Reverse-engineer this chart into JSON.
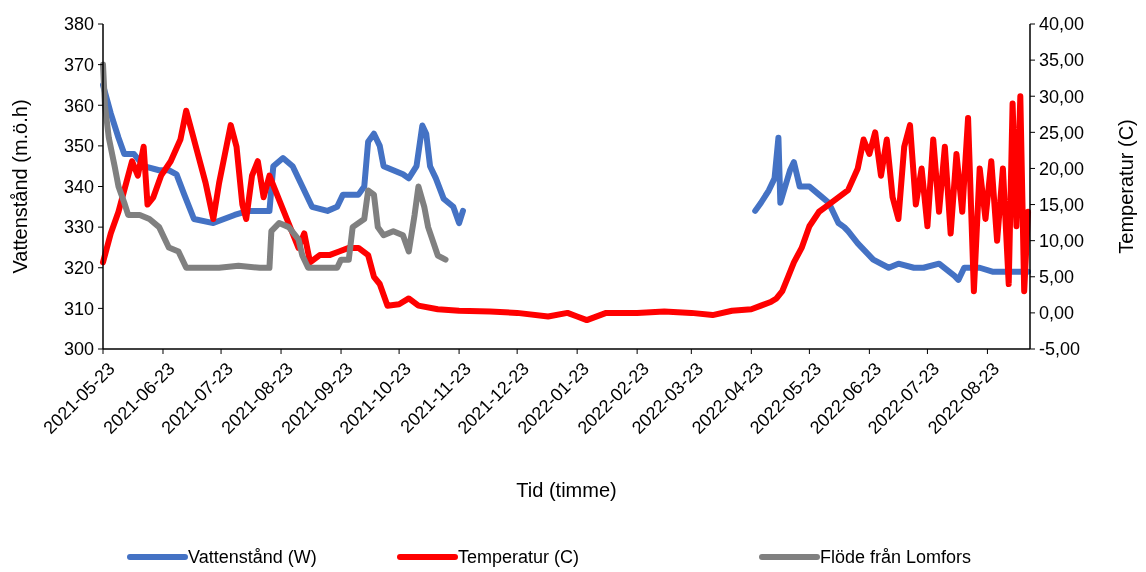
{
  "chart_data": {
    "type": "line",
    "xlabel": "Tid (timme)",
    "ylabel": "Vattenstånd (m.ö.h)",
    "y2label": "Temperatur (C)",
    "xlim": [
      "2021-05-23",
      "2022-09-14"
    ],
    "xticks": [
      "2021-05-23",
      "2021-06-23",
      "2021-07-23",
      "2021-08-23",
      "2021-09-23",
      "2021-10-23",
      "2021-11-23",
      "2021-12-23",
      "2022-01-23",
      "2022-02-23",
      "2022-03-23",
      "2022-04-23",
      "2022-05-23",
      "2022-06-23",
      "2022-07-23",
      "2022-08-23"
    ],
    "ylim": [
      300,
      380
    ],
    "yticks": [
      300,
      310,
      320,
      330,
      340,
      350,
      360,
      370,
      380
    ],
    "y2lim": [
      -5,
      40
    ],
    "y2ticks": [
      {
        "value": -5,
        "label": "-5,00"
      },
      {
        "value": 0,
        "label": "0,00"
      },
      {
        "value": 5,
        "label": "5,00"
      },
      {
        "value": 10,
        "label": "10,00"
      },
      {
        "value": 15,
        "label": "15,00"
      },
      {
        "value": 20,
        "label": "20,00"
      },
      {
        "value": 25,
        "label": "25,00"
      },
      {
        "value": 30,
        "label": "30,00"
      },
      {
        "value": 35,
        "label": "35,00"
      },
      {
        "value": 40,
        "label": "40,00"
      }
    ],
    "grid": false,
    "legend": "bottom",
    "marker": "none",
    "line_style": "solid",
    "series": [
      {
        "name": "Vattenstånd (W)",
        "color": "#4472c4",
        "x": [
          "2021-05-23",
          "2021-05-27",
          "2021-05-31",
          "2021-06-03",
          "2021-06-08",
          "2021-06-13",
          "2021-06-21",
          "2021-06-26",
          "2021-06-30",
          "2021-07-04",
          "2021-07-09",
          "2021-07-19",
          "2021-07-30",
          "2021-08-06",
          "2021-08-17",
          "2021-08-19",
          "2021-08-24",
          "2021-08-29",
          "2021-09-03",
          "2021-09-08",
          "2021-09-16",
          "2021-09-21",
          "2021-09-24",
          "2021-10-02",
          "2021-10-05",
          "2021-10-07",
          "2021-10-10",
          "2021-10-13",
          "2021-10-15",
          "2021-10-20",
          "2021-10-25",
          "2021-10-28",
          "2021-11-01",
          "2021-11-04",
          "2021-11-06",
          "2021-11-08",
          "2021-11-11",
          "2021-11-15",
          "2021-11-20",
          "2021-11-23",
          "2021-11-25",
          "2021-12-01",
          "2022-04-20",
          "2022-04-25",
          "2022-04-28",
          "2022-05-02",
          "2022-05-05",
          "2022-05-07",
          "2022-05-08",
          "2022-05-13",
          "2022-05-15",
          "2022-05-18",
          "2022-05-23",
          "2022-05-28",
          "2022-06-02",
          "2022-06-07",
          "2022-06-10",
          "2022-06-12",
          "2022-06-17",
          "2022-06-25",
          "2022-07-03",
          "2022-07-08",
          "2022-07-16",
          "2022-07-21",
          "2022-07-29",
          "2022-08-06",
          "2022-08-08",
          "2022-08-11",
          "2022-08-19",
          "2022-08-26",
          "2022-09-05",
          "2022-09-13"
        ],
        "values": [
          365,
          358,
          352,
          348,
          348,
          345,
          344,
          344,
          343,
          338,
          332,
          331,
          333,
          334,
          334,
          345,
          347,
          345,
          340,
          335,
          334,
          335,
          338,
          338,
          340,
          351,
          353,
          350,
          345,
          344,
          343,
          342,
          345,
          355,
          353,
          345,
          342,
          337,
          335,
          331,
          334,
          null,
          null,
          334,
          336,
          339,
          342,
          352,
          336,
          344,
          346,
          340,
          340,
          338,
          336,
          331,
          330,
          329,
          326,
          322,
          320,
          321,
          320,
          320,
          321,
          318,
          317,
          320,
          320,
          319,
          319,
          319
        ]
      },
      {
        "name": "Temperatur (C)",
        "color": "#ff0000",
        "axis": "y2",
        "x": [
          "2021-05-23",
          "2021-05-27",
          "2021-05-31",
          "2021-06-04",
          "2021-06-07",
          "2021-06-10",
          "2021-06-13",
          "2021-06-15",
          "2021-06-18",
          "2021-06-22",
          "2021-06-27",
          "2021-07-02",
          "2021-07-05",
          "2021-07-08",
          "2021-07-11",
          "2021-07-15",
          "2021-07-19",
          "2021-07-22",
          "2021-07-25",
          "2021-07-28",
          "2021-07-31",
          "2021-08-03",
          "2021-08-05",
          "2021-08-08",
          "2021-08-11",
          "2021-08-14",
          "2021-08-17",
          "2021-08-20",
          "2021-08-23",
          "2021-08-26",
          "2021-08-29",
          "2021-09-01",
          "2021-09-04",
          "2021-09-07",
          "2021-09-12",
          "2021-09-17",
          "2021-09-22",
          "2021-09-27",
          "2021-10-02",
          "2021-10-07",
          "2021-10-10",
          "2021-10-13",
          "2021-10-17",
          "2021-10-23",
          "2021-10-28",
          "2021-11-02",
          "2021-11-12",
          "2021-11-23",
          "2021-12-09",
          "2021-12-23",
          "2022-01-08",
          "2022-01-18",
          "2022-01-23",
          "2022-01-28",
          "2022-02-07",
          "2022-02-23",
          "2022-03-09",
          "2022-03-23",
          "2022-04-03",
          "2022-04-13",
          "2022-04-23",
          "2022-04-28",
          "2022-05-03",
          "2022-05-06",
          "2022-05-09",
          "2022-05-12",
          "2022-05-15",
          "2022-05-19",
          "2022-05-23",
          "2022-05-28",
          "2022-06-02",
          "2022-06-07",
          "2022-06-12",
          "2022-06-17",
          "2022-06-20",
          "2022-06-23",
          "2022-06-26",
          "2022-06-29",
          "2022-07-02",
          "2022-07-05",
          "2022-07-08",
          "2022-07-11",
          "2022-07-14",
          "2022-07-17",
          "2022-07-20",
          "2022-07-23",
          "2022-07-26",
          "2022-07-29",
          "2022-08-01",
          "2022-08-04",
          "2022-08-07",
          "2022-08-10",
          "2022-08-13",
          "2022-08-16",
          "2022-08-19",
          "2022-08-22",
          "2022-08-25",
          "2022-08-28",
          "2022-08-31",
          "2022-09-03",
          "2022-09-05",
          "2022-09-07",
          "2022-09-09",
          "2022-09-11",
          "2022-09-13"
        ],
        "values": [
          7,
          11,
          14,
          18,
          21,
          19,
          23,
          15,
          16,
          19,
          21,
          24,
          28,
          25,
          22,
          18,
          13,
          18,
          22,
          26,
          23,
          15,
          13,
          19,
          21,
          16,
          19,
          17,
          15,
          13,
          11,
          9,
          11,
          7,
          8,
          8,
          8.5,
          9,
          9,
          8,
          5,
          4,
          1,
          1.2,
          2,
          1,
          0.5,
          0.3,
          0.2,
          0,
          -0.5,
          0,
          -0.5,
          -1,
          0,
          0,
          0.2,
          0,
          -0.3,
          0.3,
          0.5,
          1,
          1.5,
          2,
          3,
          5,
          7,
          9,
          12,
          14,
          15,
          16,
          17,
          20,
          24,
          22,
          25,
          19,
          24,
          16,
          13,
          23,
          26,
          15,
          20,
          12,
          24,
          14,
          23,
          11,
          22,
          14,
          27,
          3,
          20,
          13,
          21,
          10,
          20,
          4,
          29,
          12,
          30,
          3,
          14
        ]
      },
      {
        "name": "Flöde från Lomfors",
        "color": "#808080",
        "x": [
          "2021-05-23",
          "2021-05-24",
          "2021-05-26",
          "2021-05-29",
          "2021-05-31",
          "2021-06-03",
          "2021-06-05",
          "2021-06-11",
          "2021-06-16",
          "2021-06-21",
          "2021-06-26",
          "2021-07-01",
          "2021-07-05",
          "2021-07-12",
          "2021-07-22",
          "2021-08-01",
          "2021-08-12",
          "2021-08-17",
          "2021-08-18",
          "2021-08-22",
          "2021-08-27",
          "2021-09-01",
          "2021-09-03",
          "2021-09-06",
          "2021-09-16",
          "2021-09-21",
          "2021-09-23",
          "2021-09-27",
          "2021-09-29",
          "2021-10-05",
          "2021-10-07",
          "2021-10-10",
          "2021-10-12",
          "2021-10-15",
          "2021-10-20",
          "2021-10-25",
          "2021-10-28",
          "2021-10-31",
          "2021-11-02",
          "2021-11-05",
          "2021-11-07",
          "2021-11-12",
          "2021-11-16"
        ],
        "values": [
          370,
          360,
          352,
          345,
          340,
          336,
          333,
          333,
          332,
          330,
          325,
          324,
          320,
          320,
          320,
          320.5,
          320,
          320,
          329,
          331,
          330,
          327,
          323,
          320,
          320,
          320,
          322,
          322,
          330,
          332,
          339,
          338,
          330,
          328,
          329,
          328,
          324,
          333,
          340,
          335,
          330,
          323,
          322
        ]
      }
    ]
  }
}
